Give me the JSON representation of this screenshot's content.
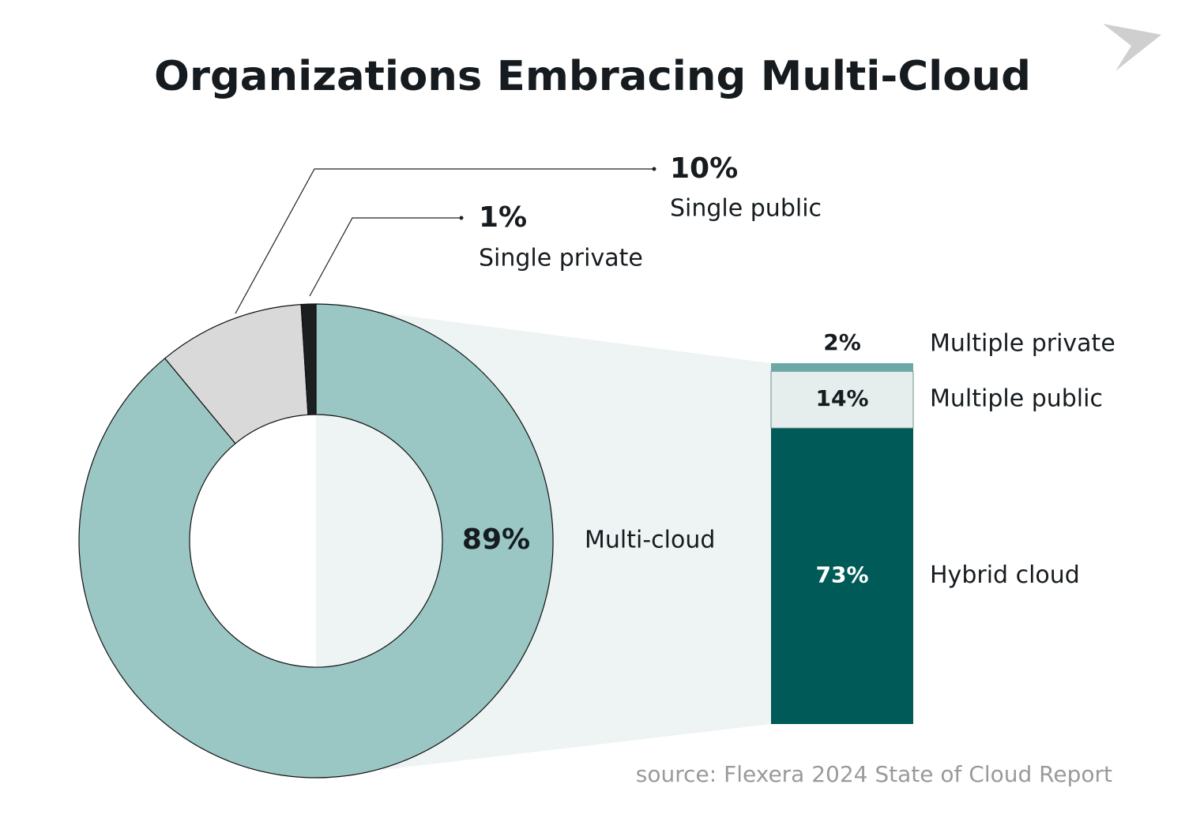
{
  "chart_data": [
    {
      "type": "donut",
      "title": "Organizations Embracing Multi-Cloud",
      "categories": [
        "Multi-cloud",
        "Single public",
        "Single private"
      ],
      "values": [
        89,
        10,
        1
      ],
      "value_labels": [
        "89%",
        "10%",
        "1%"
      ],
      "colors": [
        "#9ac6c4",
        "#d9d9d9",
        "#1b1f1f"
      ]
    },
    {
      "type": "stacked-bar",
      "categories": [
        "Hybrid cloud",
        "Multiple public",
        "Multiple private"
      ],
      "values": [
        73,
        14,
        2
      ],
      "value_labels": [
        "73%",
        "14%",
        "2%"
      ],
      "colors": [
        "#005b58",
        "#e6eeed",
        "#6aa9a5"
      ]
    }
  ],
  "source": "source: Flexera 2024 State of Cloud Report"
}
